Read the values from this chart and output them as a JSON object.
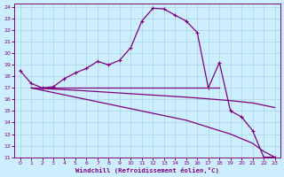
{
  "xlabel": "Windchill (Refroidissement éolien,°C)",
  "bg_color": "#cceeff",
  "line_color": "#800080",
  "grid_color": "#aad4e0",
  "xlim": [
    -0.5,
    23.5
  ],
  "ylim": [
    11,
    24.3
  ],
  "xticks": [
    0,
    1,
    2,
    3,
    4,
    5,
    6,
    7,
    8,
    9,
    10,
    11,
    12,
    13,
    14,
    15,
    16,
    17,
    18,
    19,
    20,
    21,
    22,
    23
  ],
  "yticks": [
    11,
    12,
    13,
    14,
    15,
    16,
    17,
    18,
    19,
    20,
    21,
    22,
    23,
    24
  ],
  "curve1_x": [
    0,
    1,
    2,
    3,
    4,
    5,
    6,
    7,
    8,
    9,
    10,
    11,
    12,
    13,
    14,
    15,
    16,
    17,
    18,
    19,
    20,
    21,
    22,
    23
  ],
  "curve1_y": [
    18.5,
    17.4,
    17.0,
    17.1,
    17.8,
    18.3,
    18.7,
    19.3,
    19.0,
    19.4,
    20.5,
    22.8,
    23.9,
    23.85,
    23.3,
    22.8,
    21.8,
    17.0,
    19.2,
    15.0,
    14.5,
    13.3,
    11.0,
    11.0
  ],
  "curve2_x": [
    1,
    2,
    3,
    4,
    5,
    6,
    7,
    8,
    9,
    10,
    11,
    12,
    13,
    14,
    15,
    16,
    17,
    18
  ],
  "curve2_y": [
    17.0,
    17.0,
    17.0,
    17.0,
    17.0,
    17.0,
    17.0,
    17.0,
    17.0,
    17.0,
    17.0,
    17.0,
    17.0,
    17.0,
    17.0,
    17.0,
    17.0,
    17.0
  ],
  "curve3_x": [
    1,
    5,
    10,
    15,
    19,
    21,
    22,
    23
  ],
  "curve3_y": [
    17.0,
    16.8,
    16.5,
    16.2,
    15.9,
    15.7,
    15.5,
    15.3
  ],
  "curve4_x": [
    1,
    5,
    10,
    15,
    19,
    21,
    22,
    23
  ],
  "curve4_y": [
    17.0,
    16.2,
    15.2,
    14.2,
    13.0,
    12.2,
    11.5,
    11.0
  ]
}
